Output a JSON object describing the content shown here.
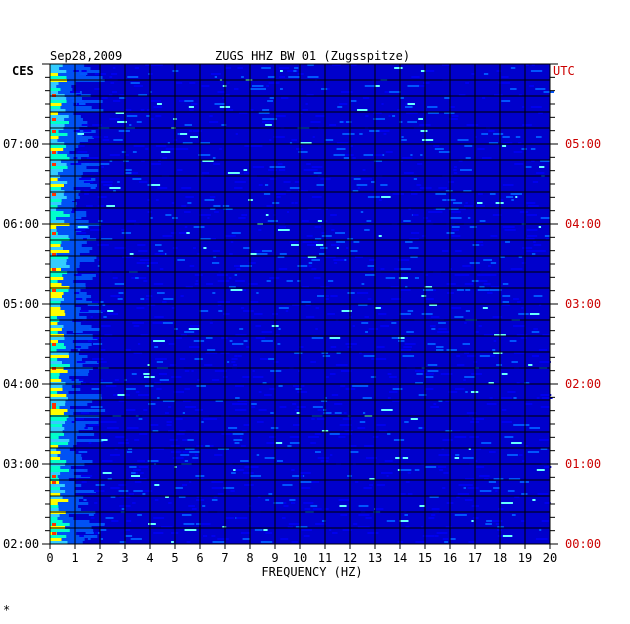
{
  "header": {
    "date": "Sep28,2009",
    "station": "ZUGS HHZ BW 01 (Zugsspitze)",
    "left_tz": "CES",
    "right_tz": "UTC",
    "footer_mark": "*"
  },
  "colors": {
    "background": "#0000cc",
    "right_axis": "#cc0000",
    "grid": "#000000"
  },
  "chart_data": {
    "type": "heatmap",
    "xlabel": "FREQUENCY (HZ)",
    "xlim": [
      0,
      20
    ],
    "x_ticks": [
      "0",
      "1",
      "2",
      "3",
      "4",
      "5",
      "6",
      "7",
      "8",
      "9",
      "10",
      "11",
      "12",
      "13",
      "14",
      "15",
      "16",
      "17",
      "18",
      "19",
      "20"
    ],
    "y_ticks_left": [
      "07:00",
      "06:00",
      "05:00",
      "04:00",
      "03:00",
      "02:00"
    ],
    "y_ticks_right": [
      "05:00",
      "04:00",
      "03:00",
      "02:00",
      "01:00",
      "00:00"
    ],
    "y_tick_hours_from_bottom": [
      5,
      4,
      3,
      2,
      1,
      0
    ],
    "time_span_hours": 6,
    "energy_concentration_hz": [
      0,
      1
    ]
  }
}
